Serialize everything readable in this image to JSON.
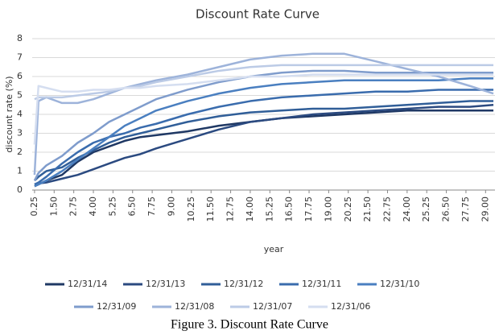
{
  "chart_data": {
    "type": "line",
    "title": "Discount Rate Curve",
    "x_label": "year",
    "y_label": "discount rate (%)",
    "caption": "Figure 3. Discount Rate Curve",
    "x": [
      0.25,
      0.5,
      1,
      2,
      3,
      4,
      5,
      6,
      7,
      8,
      10,
      12,
      14,
      16,
      18,
      20,
      22,
      24,
      26,
      28,
      29.5
    ],
    "series": [
      {
        "name": "12/31/14",
        "color": "#1f3864",
        "values": [
          0.2,
          0.3,
          0.5,
          0.8,
          1.5,
          2.0,
          2.3,
          2.6,
          2.8,
          2.9,
          3.1,
          3.4,
          3.6,
          3.8,
          3.9,
          4.0,
          4.1,
          4.2,
          4.2,
          4.2,
          4.2
        ]
      },
      {
        "name": "12/31/13",
        "color": "#2b4a80",
        "values": [
          0.3,
          0.35,
          0.4,
          0.6,
          0.8,
          1.1,
          1.4,
          1.7,
          1.9,
          2.2,
          2.7,
          3.2,
          3.6,
          3.8,
          4.0,
          4.1,
          4.2,
          4.3,
          4.4,
          4.4,
          4.5
        ]
      },
      {
        "name": "12/31/12",
        "color": "#305e98",
        "values": [
          0.5,
          0.7,
          1.0,
          1.2,
          1.7,
          2.1,
          2.5,
          2.8,
          3.0,
          3.2,
          3.6,
          3.9,
          4.1,
          4.2,
          4.3,
          4.3,
          4.4,
          4.5,
          4.6,
          4.7,
          4.7
        ]
      },
      {
        "name": "12/31/11",
        "color": "#3a6cad",
        "values": [
          0.3,
          0.4,
          0.7,
          1.4,
          2.0,
          2.5,
          2.8,
          3.0,
          3.3,
          3.5,
          4.0,
          4.4,
          4.7,
          4.9,
          5.0,
          5.1,
          5.2,
          5.2,
          5.3,
          5.3,
          5.3
        ]
      },
      {
        "name": "12/31/10",
        "color": "#4a7fc0",
        "values": [
          0.2,
          0.3,
          0.5,
          1.0,
          1.6,
          2.2,
          2.8,
          3.4,
          3.8,
          4.2,
          4.7,
          5.1,
          5.4,
          5.6,
          5.7,
          5.8,
          5.8,
          5.8,
          5.8,
          5.9,
          5.9
        ]
      },
      {
        "name": "12/31/09",
        "color": "#7f9ccc",
        "values": [
          0.5,
          0.9,
          1.3,
          1.8,
          2.5,
          3.0,
          3.6,
          4.0,
          4.4,
          4.8,
          5.3,
          5.7,
          6.0,
          6.2,
          6.3,
          6.3,
          6.2,
          6.2,
          6.2,
          6.2,
          6.2
        ]
      },
      {
        "name": "12/31/08",
        "color": "#9db3da",
        "values": [
          0.8,
          4.7,
          4.9,
          4.6,
          4.6,
          4.8,
          5.1,
          5.4,
          5.6,
          5.8,
          6.1,
          6.5,
          6.9,
          7.1,
          7.2,
          7.2,
          6.8,
          6.4,
          6.0,
          5.5,
          5.1
        ]
      },
      {
        "name": "12/31/07",
        "color": "#bccbe6",
        "values": [
          4.8,
          4.9,
          4.9,
          4.9,
          5.0,
          5.1,
          5.2,
          5.4,
          5.5,
          5.7,
          6.0,
          6.3,
          6.5,
          6.6,
          6.6,
          6.6,
          6.6,
          6.6,
          6.6,
          6.6,
          6.6
        ]
      },
      {
        "name": "12/31/06",
        "color": "#d5def0",
        "values": [
          2.4,
          5.5,
          5.4,
          5.2,
          5.2,
          5.3,
          5.3,
          5.4,
          5.4,
          5.5,
          5.6,
          5.8,
          6.0,
          6.0,
          6.1,
          6.1,
          6.1,
          6.1,
          6.1,
          6.1,
          6.1
        ]
      }
    ],
    "xlim": [
      0.1,
      29.6
    ],
    "xticks": [
      0.25,
      {
        "value": 1.5,
        "label": "1.50"
      },
      2.75,
      {
        "value": 4,
        "label": "4.00"
      },
      5.25,
      {
        "value": 6.5,
        "label": "6.50"
      },
      7.75,
      {
        "value": 9,
        "label": "9.00"
      },
      10.25,
      {
        "value": 11.5,
        "label": "11.50"
      },
      12.75,
      {
        "value": 14,
        "label": "14.00"
      },
      15.25,
      {
        "value": 16.5,
        "label": "16.50"
      },
      17.75,
      {
        "value": 19,
        "label": "19.00"
      },
      20.25,
      {
        "value": 21.5,
        "label": "21.50"
      },
      22.75,
      {
        "value": 24,
        "label": "24.00"
      },
      25.25,
      {
        "value": 26.5,
        "label": "26.50"
      },
      27.75,
      {
        "value": 29,
        "label": "29.00"
      }
    ],
    "ylim": [
      0,
      8
    ],
    "yticks": [
      0,
      1,
      2,
      3,
      4,
      5,
      6,
      7,
      8
    ],
    "grid": true,
    "legend": "bottom"
  }
}
